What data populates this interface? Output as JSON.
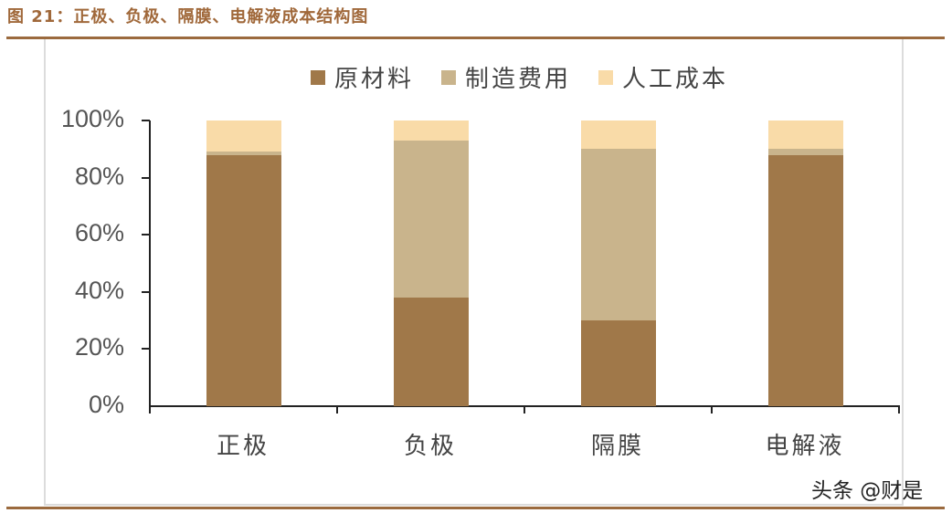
{
  "title": "图 21：正极、负极、隔膜、电解液成本结构图",
  "watermark": "头条 @财是",
  "colors": {
    "raw_material": "#a07849",
    "manufacturing": "#c9b48c",
    "labor": "#f9dba8",
    "title": "#a0683a",
    "rule": "#9b6a3e"
  },
  "legend": [
    {
      "label": "原材料",
      "color": "#a07849"
    },
    {
      "label": "制造费用",
      "color": "#c9b48c"
    },
    {
      "label": "人工成本",
      "color": "#f9dba8"
    }
  ],
  "yaxis": {
    "ticks": [
      "100%",
      "80%",
      "60%",
      "40%",
      "20%",
      "0%"
    ]
  },
  "chart_data": {
    "type": "bar",
    "stacked": true,
    "title": "图 21：正极、负极、隔膜、电解液成本结构图",
    "xlabel": "",
    "ylabel": "",
    "ylim": [
      0,
      100
    ],
    "yticks": [
      "0%",
      "20%",
      "40%",
      "60%",
      "80%",
      "100%"
    ],
    "categories": [
      "正极",
      "负极",
      "隔膜",
      "电解液"
    ],
    "series": [
      {
        "name": "原材料",
        "color": "#a07849",
        "values": [
          88,
          38,
          30,
          88
        ]
      },
      {
        "name": "制造费用",
        "color": "#c9b48c",
        "values": [
          1,
          55,
          60,
          2
        ]
      },
      {
        "name": "人工成本",
        "color": "#f9dba8",
        "values": [
          11,
          7,
          10,
          10
        ]
      }
    ],
    "legend_position": "top",
    "grid": false
  }
}
